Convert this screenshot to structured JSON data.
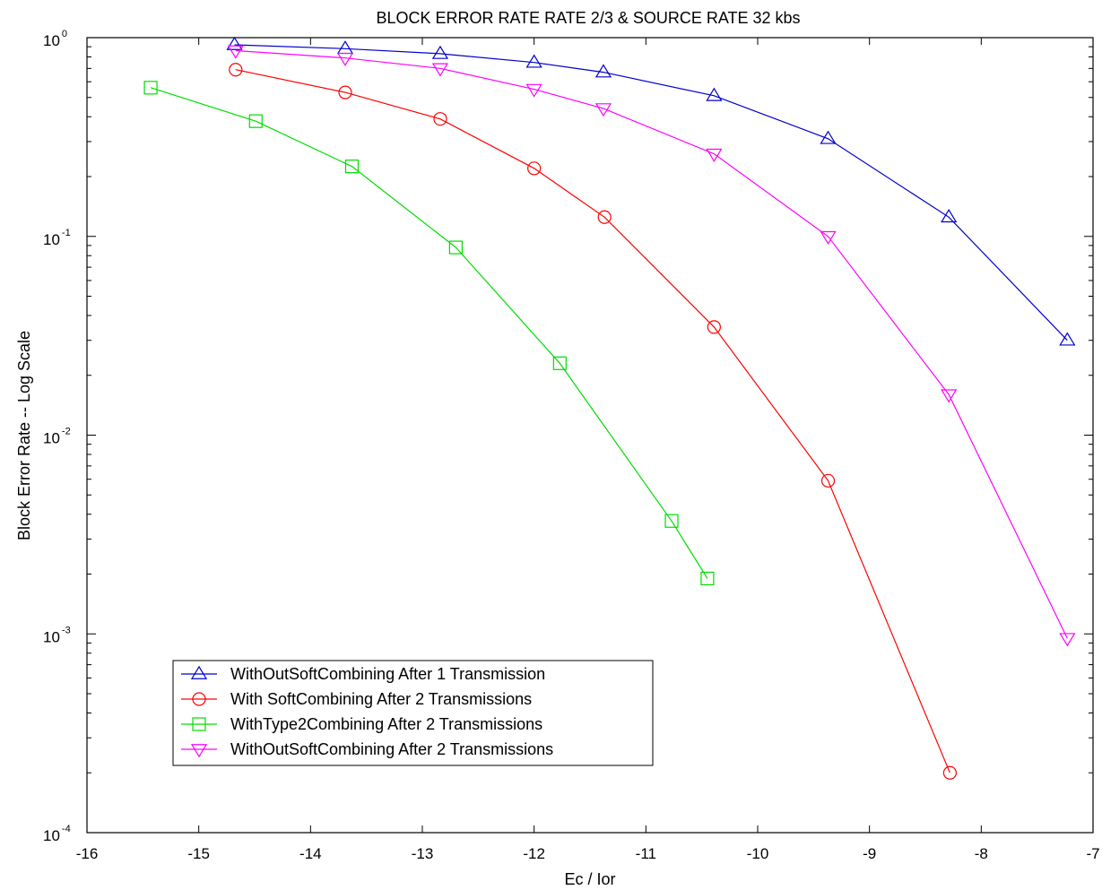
{
  "chart_data": {
    "type": "line",
    "title": "BLOCK ERROR RATE RATE 2/3 & SOURCE RATE 32 kbs",
    "xlabel": "Ec / Ior",
    "ylabel": "Block Error Rate -- Log Scale",
    "xlim": [
      -16,
      -7
    ],
    "ylim": [
      0.0001,
      1
    ],
    "yscale": "log",
    "grid": false,
    "legend_position": "bottom-left",
    "x_ticks": [
      "-16",
      "-15",
      "-14",
      "-13",
      "-12",
      "-11",
      "-10",
      "-9",
      "-8",
      "-7"
    ],
    "y_ticks": [
      {
        "base": "10",
        "exp": "-4"
      },
      {
        "base": "10",
        "exp": "-3"
      },
      {
        "base": "10",
        "exp": "-2"
      },
      {
        "base": "10",
        "exp": "-1"
      },
      {
        "base": "10",
        "exp": "0"
      }
    ],
    "series": [
      {
        "name": "WithOutSoftCombining After 1 Transmission",
        "color": "#0000cc",
        "marker": "triangle-up",
        "x": [
          -14.68,
          -13.69,
          -12.84,
          -12.0,
          -11.38,
          -10.39,
          -9.37,
          -8.29,
          -7.23
        ],
        "y": [
          0.92,
          0.88,
          0.83,
          0.75,
          0.67,
          0.51,
          0.31,
          0.125,
          0.03
        ]
      },
      {
        "name": "With SoftCombining After 2 Transmissions",
        "color": "#ff0000",
        "marker": "circle",
        "x": [
          -14.67,
          -13.69,
          -12.84,
          -12.0,
          -11.37,
          -10.39,
          -9.37,
          -8.28
        ],
        "y": [
          0.69,
          0.53,
          0.39,
          0.22,
          0.125,
          0.035,
          0.0059,
          0.0002
        ]
      },
      {
        "name": "WithType2Combining After 2 Transmissions",
        "color": "#00dd00",
        "marker": "square",
        "x": [
          -15.43,
          -14.49,
          -13.63,
          -12.7,
          -11.77,
          -10.77,
          -10.45
        ],
        "y": [
          0.56,
          0.38,
          0.225,
          0.088,
          0.023,
          0.0037,
          0.0019
        ]
      },
      {
        "name": "WithOutSoftCombining After 2 Transmissions",
        "color": "#ff00ff",
        "marker": "triangle-down",
        "x": [
          -14.67,
          -13.69,
          -12.84,
          -12.0,
          -11.38,
          -10.39,
          -9.37,
          -8.29,
          -7.23
        ],
        "y": [
          0.86,
          0.79,
          0.7,
          0.55,
          0.44,
          0.26,
          0.1,
          0.016,
          0.00095
        ]
      }
    ]
  }
}
